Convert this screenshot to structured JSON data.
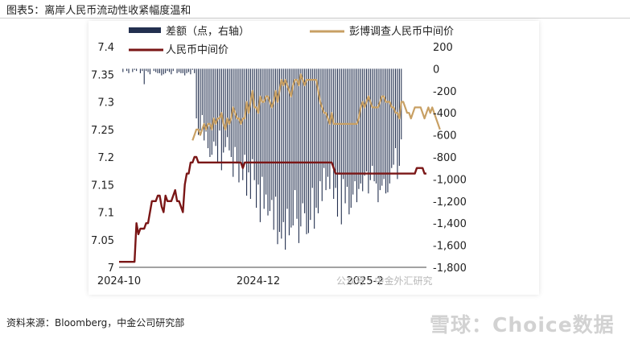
{
  "figure_title": "图表5：离岸人民币流动性收紧幅度温和",
  "source": "资料来源：Bloomberg，中金公司研究部",
  "watermark": "雪球：Choice数据",
  "watermark2": "公众号 · 中金外汇研究",
  "colors": {
    "spread_bar": "#23304f",
    "fixing_estimate": "#c8a064",
    "fixing": "#7a1616",
    "grid_panel": "#ffffff"
  },
  "chart_data": {
    "type": "line",
    "legend": [
      "差额（点，右轴）",
      "彭博调查人民币中间价",
      "人民币中间价"
    ],
    "x_tick_labels": [
      "2024-10",
      "2024-12",
      "2025-2"
    ],
    "left_axis": {
      "ticks": [
        "7",
        "7.05",
        "7.1",
        "7.15",
        "7.2",
        "7.25",
        "7.3",
        "7.35",
        "7.4"
      ],
      "range": [
        7.0,
        7.4
      ]
    },
    "right_axis": {
      "ticks": [
        "200",
        "0",
        "-200",
        "-400",
        "-600",
        "-800",
        "-1,000",
        "-1,200",
        "-1,400",
        "-1,600",
        "-1,800"
      ],
      "range": [
        -1800,
        200
      ]
    },
    "series": [
      {
        "name": "人民币中间价",
        "axis": "left",
        "values": [
          7.01,
          7.01,
          7.01,
          7.01,
          7.01,
          7.01,
          7.01,
          7.01,
          7.01,
          7.08,
          7.06,
          7.07,
          7.07,
          7.07,
          7.08,
          7.08,
          7.1,
          7.12,
          7.12,
          7.12,
          7.13,
          7.13,
          7.11,
          7.1,
          7.13,
          7.12,
          7.12,
          7.12,
          7.13,
          7.14,
          7.12,
          7.12,
          7.11,
          7.1,
          7.15,
          7.17,
          7.17,
          7.19,
          7.19,
          7.2,
          7.2,
          7.19,
          7.19,
          7.19,
          7.19,
          7.19,
          7.19,
          7.19,
          7.19,
          7.19,
          7.19,
          7.19,
          7.19,
          7.19,
          7.19,
          7.19,
          7.19,
          7.19,
          7.19,
          7.19,
          7.19,
          7.19,
          7.19,
          7.19,
          7.18,
          7.19,
          7.19,
          7.19,
          7.19,
          7.19,
          7.19,
          7.19,
          7.19,
          7.19,
          7.19,
          7.19,
          7.19,
          7.19,
          7.19,
          7.19,
          7.19,
          7.19,
          7.19,
          7.19,
          7.19,
          7.19,
          7.19,
          7.19,
          7.19,
          7.19,
          7.19,
          7.19,
          7.19,
          7.19,
          7.19,
          7.19,
          7.19,
          7.19,
          7.19,
          7.19,
          7.19,
          7.19,
          7.19,
          7.19,
          7.19,
          7.19,
          7.19,
          7.19,
          7.19,
          7.19,
          7.19,
          7.18,
          7.17,
          7.17,
          7.17,
          7.17,
          7.17,
          7.17,
          7.17,
          7.17,
          7.17,
          7.17,
          7.17,
          7.17,
          7.17,
          7.17,
          7.17,
          7.17,
          7.17,
          7.17,
          7.17,
          7.17,
          7.17,
          7.17,
          7.17,
          7.17,
          7.17,
          7.17,
          7.17,
          7.17,
          7.17,
          7.17,
          7.17,
          7.17,
          7.17,
          7.17,
          7.17,
          7.17,
          7.17,
          7.17,
          7.17,
          7.17,
          7.17,
          7.17,
          7.18,
          7.18,
          7.18,
          7.18,
          7.17,
          7.17
        ]
      },
      {
        "name": "彭博调查人民币中间价",
        "axis": "left",
        "start_index": 38,
        "values": [
          7.23,
          7.24,
          7.25,
          7.25,
          7.24,
          7.25,
          7.26,
          7.25,
          7.26,
          7.26,
          7.25,
          7.27,
          7.26,
          7.27,
          7.27,
          7.28,
          7.26,
          7.25,
          7.27,
          7.26,
          7.27,
          7.29,
          7.28,
          7.27,
          7.27,
          7.26,
          7.27,
          7.27,
          7.3,
          7.28,
          7.3,
          7.32,
          7.29,
          7.29,
          7.28,
          7.31,
          7.3,
          7.3,
          7.31,
          7.31,
          7.3,
          7.29,
          7.3,
          7.32,
          7.3,
          7.32,
          7.34,
          7.33,
          7.34,
          7.33,
          7.32,
          7.31,
          7.33,
          7.34,
          7.34,
          7.33,
          7.35,
          7.34,
          7.33,
          7.34,
          7.34,
          7.34,
          7.34,
          7.34,
          7.34,
          7.32,
          7.3,
          7.29,
          7.28,
          7.28,
          7.27,
          7.26,
          7.28,
          7.26,
          7.26,
          7.26,
          7.26,
          7.26,
          7.26,
          7.26,
          7.26,
          7.26,
          7.26,
          7.26,
          7.26,
          7.26,
          7.27,
          7.29,
          7.3,
          7.29,
          7.3,
          7.31,
          7.3,
          7.29,
          7.29,
          7.29,
          7.29,
          7.3,
          7.31,
          7.31,
          7.3,
          7.3,
          7.3,
          7.29,
          7.29,
          7.28,
          7.28,
          7.27,
          7.3,
          7.3,
          7.29,
          7.28,
          7.28,
          7.27,
          7.28,
          7.29,
          7.29,
          7.29,
          7.29,
          7.28,
          7.27,
          7.28,
          7.29,
          7.28,
          7.29,
          7.28,
          7.27,
          7.26,
          7.25
        ]
      },
      {
        "name": "差额（点，右轴）",
        "axis": "right",
        "type": "bar",
        "values": [
          0,
          0,
          -30,
          0,
          -20,
          -40,
          0,
          -30,
          -10,
          -20,
          0,
          -40,
          -20,
          -140,
          -20,
          -30,
          -50,
          0,
          -20,
          -30,
          -40,
          -40,
          -60,
          -50,
          -40,
          -20,
          -30,
          -50,
          -20,
          0,
          -40,
          -30,
          -40,
          -40,
          -60,
          -40,
          -30,
          -50,
          -10,
          -40,
          -450,
          -600,
          -560,
          -420,
          -650,
          -570,
          -720,
          -800,
          -780,
          -660,
          -700,
          -850,
          -560,
          -920,
          -760,
          -710,
          -620,
          -740,
          -800,
          -980,
          -710,
          -860,
          -1030,
          -840,
          -1010,
          -780,
          -1150,
          -940,
          -1180,
          -820,
          -1010,
          -1260,
          -1050,
          -1390,
          -980,
          -1270,
          -1140,
          -1330,
          -1290,
          -1190,
          -1460,
          -1160,
          -1590,
          -1480,
          -1540,
          -1390,
          -1640,
          -1270,
          -1510,
          -1440,
          -1420,
          -1100,
          -1360,
          -1580,
          -1430,
          -1220,
          -1310,
          -1500,
          -1490,
          -1370,
          -1080,
          -1450,
          -1260,
          -1310,
          -1020,
          -1200,
          -900,
          -1100,
          -980,
          -1090,
          -870,
          -1180,
          -1080,
          -1340,
          -960,
          -1410,
          -1000,
          -1220,
          -1070,
          -1320,
          -1260,
          -1140,
          -1020,
          -1210,
          -1090,
          -1040,
          -1110,
          -970,
          -930,
          -1130,
          -1010,
          -880,
          -1020,
          -1040,
          -1210,
          -1100,
          -1060,
          -1000,
          -1130,
          -1120,
          -1040,
          -900,
          -870,
          -720,
          -1000,
          -880,
          -640
        ]
      }
    ],
    "grid": false
  }
}
